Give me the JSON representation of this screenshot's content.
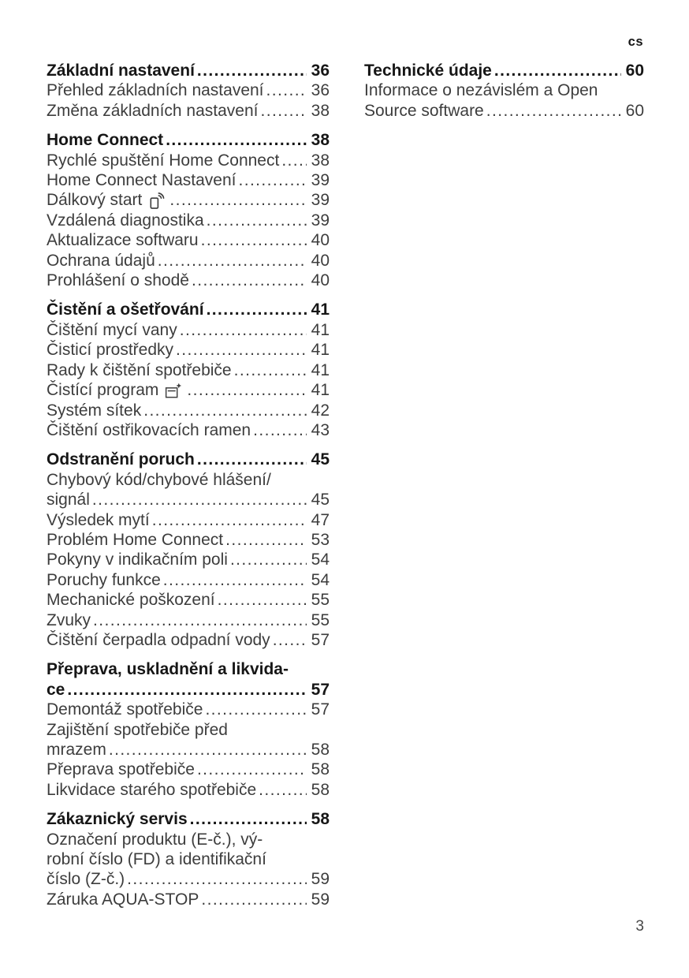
{
  "page": {
    "lang_tag": "cs",
    "page_number": "3"
  },
  "colors": {
    "heading_text": "#161616",
    "body_text": "#3d3d3d",
    "background": "#ffffff"
  },
  "toc": {
    "left_column": [
      {
        "title_lines": [
          "Základní nastavení"
        ],
        "page": "36",
        "entries": [
          {
            "lines": [
              "Přehled základních nastavení"
            ],
            "page": "36"
          },
          {
            "lines": [
              "Změna základních nastavení"
            ],
            "page": "38"
          }
        ]
      },
      {
        "title_lines": [
          "Home Connect"
        ],
        "page": "38",
        "entries": [
          {
            "lines": [
              "Rychlé spuštění Home Connect"
            ],
            "page": "38"
          },
          {
            "lines": [
              "Home Connect Nastavení"
            ],
            "page": "39"
          },
          {
            "lines": [
              "Dálkový start"
            ],
            "icon": "remote-start-icon",
            "page": "39"
          },
          {
            "lines": [
              "Vzdálená diagnostika"
            ],
            "page": "39"
          },
          {
            "lines": [
              "Aktualizace softwaru"
            ],
            "page": "40"
          },
          {
            "lines": [
              "Ochrana údajů"
            ],
            "page": "40"
          },
          {
            "lines": [
              "Prohlášení o shodě"
            ],
            "page": "40"
          }
        ]
      },
      {
        "title_lines": [
          "Čistění a ošetřování"
        ],
        "page": "41",
        "entries": [
          {
            "lines": [
              "Čištění mycí vany"
            ],
            "page": "41"
          },
          {
            "lines": [
              "Čisticí prostředky"
            ],
            "page": "41"
          },
          {
            "lines": [
              "Rady k čištění spotřebiče"
            ],
            "page": "41"
          },
          {
            "lines": [
              "Čistící program"
            ],
            "icon": "machine-care-icon",
            "page": "41"
          },
          {
            "lines": [
              "Systém sítek"
            ],
            "page": "42"
          },
          {
            "lines": [
              "Čištění ostřikovacích ramen"
            ],
            "page": "43"
          }
        ]
      },
      {
        "title_lines": [
          "Odstranění poruch"
        ],
        "page": "45",
        "entries": [
          {
            "lines": [
              "Chybový kód/chybové hlášení/",
              "signál"
            ],
            "page": "45"
          },
          {
            "lines": [
              "Výsledek mytí"
            ],
            "page": "47"
          },
          {
            "lines": [
              "Problém Home Connect"
            ],
            "page": "53"
          },
          {
            "lines": [
              "Pokyny v indikačním poli"
            ],
            "page": "54"
          },
          {
            "lines": [
              "Poruchy funkce"
            ],
            "page": "54"
          },
          {
            "lines": [
              "Mechanické poškození"
            ],
            "page": "55"
          },
          {
            "lines": [
              "Zvuky"
            ],
            "page": "55"
          },
          {
            "lines": [
              "Čištění čerpadla odpadní vody"
            ],
            "page": "57"
          }
        ]
      },
      {
        "title_lines": [
          "Přeprava, uskladnění a likvida-",
          "ce"
        ],
        "page": "57",
        "entries": [
          {
            "lines": [
              "Demontáž spotřebiče"
            ],
            "page": "57"
          },
          {
            "lines": [
              "Zajištění spotřebiče před",
              "mrazem"
            ],
            "page": "58"
          },
          {
            "lines": [
              "Přeprava spotřebiče"
            ],
            "page": "58"
          },
          {
            "lines": [
              "Likvidace starého spotřebiče"
            ],
            "page": "58"
          }
        ]
      },
      {
        "title_lines": [
          "Zákaznický servis"
        ],
        "page": "58",
        "entries": [
          {
            "lines": [
              "Označení produktu (E-č.), vý-",
              "robní číslo (FD) a identifikační",
              "číslo (Z-č.)"
            ],
            "page": "59"
          },
          {
            "lines": [
              "Záruka AQUA-STOP"
            ],
            "page": "59"
          }
        ]
      }
    ],
    "right_column": [
      {
        "title_lines": [
          "Technické údaje"
        ],
        "page": "60",
        "entries": [
          {
            "lines": [
              "Informace o nezávislém a Open",
              "Source software"
            ],
            "page": "60"
          }
        ]
      }
    ]
  }
}
